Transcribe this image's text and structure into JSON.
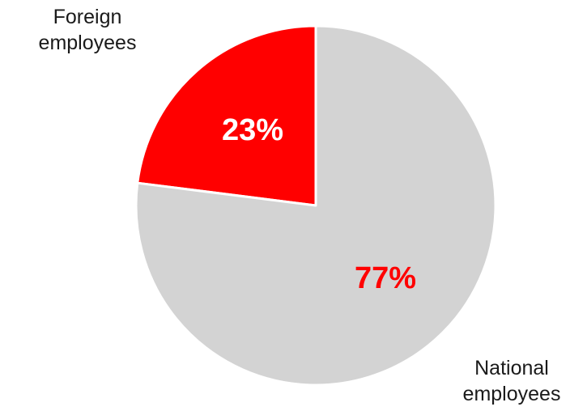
{
  "chart_data": {
    "type": "pie",
    "title": "",
    "slices": [
      {
        "label_lines": [
          "Foreign",
          "employees"
        ],
        "value": 23,
        "value_label": "23%",
        "color": "#ff0000",
        "value_label_color": "#ffffff"
      },
      {
        "label_lines": [
          "National",
          "employees"
        ],
        "value": 77,
        "value_label": "77%",
        "color": "#d3d3d3",
        "value_label_color": "#ff0000"
      }
    ],
    "start_angle": "12 o'clock",
    "direction": "counterclockwise",
    "slice_border_color": "#ffffff",
    "legend": "none"
  }
}
